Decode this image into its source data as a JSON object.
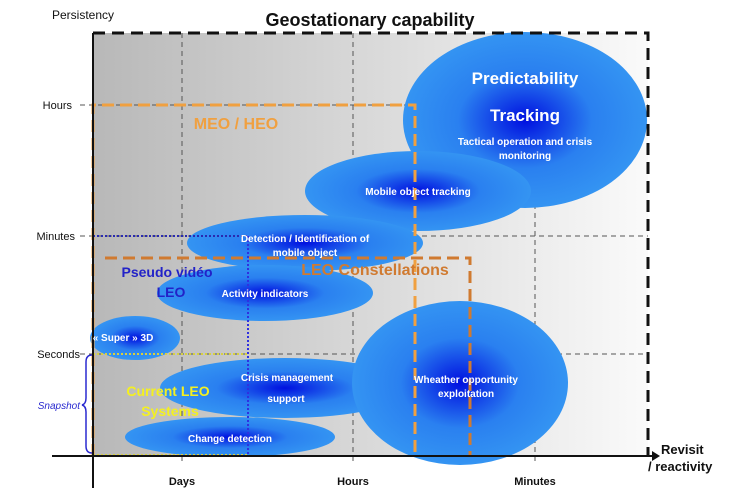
{
  "title": "Geostationary capability",
  "y_axis": {
    "label": "Persistency",
    "ticks": [
      "Hours",
      "Minutes",
      "Seconds"
    ],
    "bracket_label": "Snapshot"
  },
  "x_axis": {
    "label_line1": "Revisit",
    "label_line2": "/ reactivity",
    "ticks": [
      "Days",
      "Hours",
      "Minutes"
    ]
  },
  "regions": {
    "meo_heo": "MEO / HEO",
    "leo_constellations": "LEO Constellations",
    "pseudo_video_line1": "Pseudo vidéo",
    "pseudo_video_line2": "LEO",
    "current_leo_line1": "Current LEO",
    "current_leo_line2": "Systems"
  },
  "bubbles": {
    "predictability": {
      "title1": "Predictability",
      "title2": "Tracking",
      "line1": "Tactical operation and crisis",
      "line2": "monitoring"
    },
    "mobile_tracking": "Mobile object tracking",
    "detection_line1": "Detection / Identification of",
    "detection_line2": "mobile object",
    "activity": "Activity indicators",
    "super3d": "« Super » 3D",
    "crisis_line1": "Crisis management",
    "crisis_line2": "support",
    "change": "Change detection",
    "weather_line1": "Wheather opportunity",
    "weather_line2": "exploitation"
  },
  "colors": {
    "bubble": "#2f8ef0",
    "bubble_core": "#0010e0",
    "meo": "#f0a040",
    "leo": "#d07a30",
    "pseudo": "#2222c8",
    "current": "#f4f020"
  }
}
